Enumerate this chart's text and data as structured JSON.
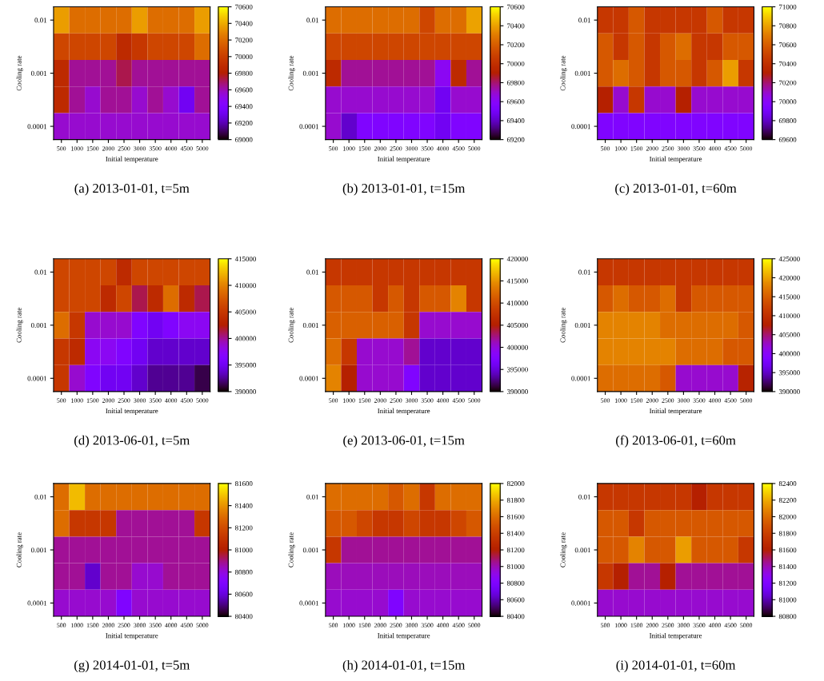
{
  "chart_data": [
    {
      "type": "heatmap",
      "title": "(a) 2013-01-01, t=5m",
      "xlabel": "Initial temperature",
      "ylabel": "Cooling rate",
      "categories": [
        "500",
        "1000",
        "1500",
        "2000",
        "2500",
        "3000",
        "3500",
        "4000",
        "4500",
        "5000"
      ],
      "y_categories": [
        "0.01",
        null,
        "0.001",
        null,
        "0.0001"
      ],
      "clim": [
        69000,
        70600
      ],
      "cticks": [
        69000,
        69200,
        69400,
        69600,
        69800,
        70000,
        70200,
        70400,
        70600
      ],
      "cells": [
        [
          70360,
          70200,
          70200,
          70200,
          70200,
          70360,
          70200,
          70200,
          70200,
          70360
        ],
        [
          70040,
          70040,
          70040,
          70040,
          69880,
          69960,
          70040,
          70040,
          70040,
          70200
        ],
        [
          69880,
          69640,
          69640,
          69640,
          69720,
          69640,
          69640,
          69640,
          69640,
          69640
        ],
        [
          69880,
          69640,
          69560,
          69640,
          69640,
          69560,
          69640,
          69560,
          69320,
          69640
        ],
        [
          69560,
          69560,
          69560,
          69560,
          69560,
          69560,
          69560,
          69560,
          69560,
          69560
        ]
      ]
    },
    {
      "type": "heatmap",
      "title": "(b) 2013-01-01, t=15m",
      "xlabel": "Initial temperature",
      "ylabel": "Cooling rate",
      "categories": [
        "500",
        "1000",
        "1500",
        "2000",
        "2500",
        "3000",
        "3500",
        "4000",
        "4500",
        "5000"
      ],
      "y_categories": [
        "0.01",
        null,
        "0.001",
        null,
        "0.0001"
      ],
      "clim": [
        69200,
        70600
      ],
      "cticks": [
        69200,
        69400,
        69600,
        69800,
        70000,
        70200,
        70400,
        70600
      ],
      "cells": [
        [
          70250,
          70250,
          70250,
          70250,
          70250,
          70250,
          70110,
          70250,
          70250,
          70400
        ],
        [
          70110,
          70110,
          70110,
          70110,
          70110,
          70110,
          70110,
          70110,
          70110,
          70110
        ],
        [
          69970,
          69760,
          69760,
          69760,
          69760,
          69760,
          69760,
          69620,
          69970,
          69760
        ],
        [
          69690,
          69690,
          69690,
          69690,
          69690,
          69690,
          69690,
          69480,
          69690,
          69690
        ],
        [
          69690,
          69410,
          69550,
          69550,
          69550,
          69550,
          69550,
          69480,
          69550,
          69550
        ]
      ]
    },
    {
      "type": "heatmap",
      "title": "(c) 2013-01-01, t=60m",
      "xlabel": "Initial temperature",
      "ylabel": "Cooling rate",
      "categories": [
        "500",
        "1000",
        "1500",
        "2000",
        "2500",
        "3000",
        "3500",
        "4000",
        "4500",
        "5000"
      ],
      "y_categories": [
        "0.01",
        null,
        "0.001",
        null,
        "0.0001"
      ],
      "clim": [
        69600,
        71000
      ],
      "cticks": [
        69600,
        69800,
        70000,
        70200,
        70400,
        70600,
        70800,
        71000
      ],
      "cells": [
        [
          70440,
          70440,
          70580,
          70440,
          70440,
          70440,
          70440,
          70580,
          70440,
          70440
        ],
        [
          70580,
          70440,
          70580,
          70440,
          70580,
          70650,
          70440,
          70440,
          70580,
          70580
        ],
        [
          70580,
          70650,
          70580,
          70440,
          70580,
          70580,
          70440,
          70580,
          70790,
          70440
        ],
        [
          70300,
          70090,
          70440,
          70090,
          70090,
          70300,
          70090,
          70090,
          70090,
          70090
        ],
        [
          69950,
          69950,
          69950,
          69950,
          69950,
          69950,
          69950,
          69950,
          69950,
          69950
        ]
      ]
    },
    {
      "type": "heatmap",
      "title": "(d) 2013-06-01, t=5m",
      "xlabel": "Initial temperature",
      "ylabel": "Cooling rate",
      "categories": [
        "500",
        "1000",
        "1500",
        "2000",
        "2500",
        "3000",
        "3500",
        "4000",
        "4500",
        "5000"
      ],
      "y_categories": [
        "0.01",
        null,
        "0.001",
        null,
        "0.0001"
      ],
      "clim": [
        390000,
        415000
      ],
      "cticks": [
        390000,
        395000,
        400000,
        405000,
        410000,
        415000
      ],
      "cells": [
        [
          406250,
          406250,
          406250,
          406250,
          403750,
          406250,
          406250,
          406250,
          406250,
          406250
        ],
        [
          406250,
          406250,
          406250,
          403750,
          406250,
          401250,
          403750,
          408750,
          403750,
          401250
        ],
        [
          408750,
          405000,
          398750,
          398750,
          398750,
          396250,
          395000,
          396250,
          397500,
          397500
        ],
        [
          405000,
          403750,
          397500,
          397500,
          396250,
          395000,
          393750,
          393750,
          393750,
          393750
        ],
        [
          405000,
          398750,
          396250,
          395000,
          395000,
          393750,
          392500,
          392500,
          392500,
          391250
        ]
      ]
    },
    {
      "type": "heatmap",
      "title": "(e) 2013-06-01, t=15m",
      "xlabel": "Initial temperature",
      "ylabel": "Cooling rate",
      "categories": [
        "500",
        "1000",
        "1500",
        "2000",
        "2500",
        "3000",
        "3500",
        "4000",
        "4500",
        "5000"
      ],
      "y_categories": [
        "0.01",
        null,
        "0.001",
        null,
        "0.0001"
      ],
      "clim": [
        390000,
        420000
      ],
      "cticks": [
        390000,
        395000,
        400000,
        405000,
        410000,
        415000,
        420000
      ],
      "cells": [
        [
          408000,
          408000,
          408000,
          408000,
          408000,
          408000,
          408000,
          408000,
          408000,
          408000
        ],
        [
          411000,
          411000,
          411000,
          408000,
          411000,
          408000,
          411000,
          411000,
          414000,
          408000
        ],
        [
          411600,
          411600,
          411600,
          411600,
          411600,
          408000,
          400500,
          400500,
          400500,
          400500
        ],
        [
          412500,
          408000,
          400500,
          400500,
          400500,
          402000,
          394500,
          394500,
          394500,
          394500
        ],
        [
          414000,
          405000,
          400500,
          400500,
          400500,
          397500,
          394500,
          394500,
          394500,
          394500
        ]
      ]
    },
    {
      "type": "heatmap",
      "title": "(f) 2013-06-01, t=60m",
      "xlabel": "Initial temperature",
      "ylabel": "Cooling rate",
      "categories": [
        "500",
        "1000",
        "1500",
        "2000",
        "2500",
        "3000",
        "3500",
        "4000",
        "4500",
        "5000"
      ],
      "y_categories": [
        "0.01",
        null,
        "0.001",
        null,
        "0.0001"
      ],
      "clim": [
        390000,
        425000
      ],
      "cticks": [
        390000,
        395000,
        400000,
        405000,
        410000,
        415000,
        420000,
        425000
      ],
      "cells": [
        [
          411000,
          411000,
          411000,
          411000,
          411000,
          411000,
          411000,
          411000,
          411000,
          411000
        ],
        [
          414500,
          416250,
          414500,
          414500,
          416250,
          411000,
          414500,
          414500,
          414500,
          414500
        ],
        [
          418000,
          418000,
          418000,
          418000,
          416250,
          416250,
          416250,
          416250,
          416250,
          414500
        ],
        [
          418000,
          418000,
          418000,
          418000,
          418000,
          416250,
          416250,
          416250,
          414500,
          414500
        ],
        [
          416250,
          416250,
          416250,
          416250,
          414500,
          402250,
          402250,
          402250,
          402250,
          408000
        ]
      ]
    },
    {
      "type": "heatmap",
      "title": "(g) 2014-01-01, t=5m",
      "xlabel": "Initial temperature",
      "ylabel": "Cooling rate",
      "categories": [
        "500",
        "1000",
        "1500",
        "2000",
        "2500",
        "3000",
        "3500",
        "4000",
        "4500",
        "5000"
      ],
      "y_categories": [
        "0.01",
        null,
        "0.001",
        null,
        "0.0001"
      ],
      "clim": [
        80400,
        81600
      ],
      "cticks": [
        80400,
        80600,
        80800,
        81000,
        81200,
        81400,
        81600
      ],
      "cells": [
        [
          81300,
          81480,
          81300,
          81300,
          81300,
          81300,
          81300,
          81300,
          81300,
          81300
        ],
        [
          81300,
          81120,
          81120,
          81120,
          80880,
          80880,
          80880,
          80880,
          80880,
          81120
        ],
        [
          80880,
          80880,
          80880,
          80880,
          80880,
          80880,
          80880,
          80880,
          80880,
          80880
        ],
        [
          80880,
          80880,
          80580,
          80880,
          80880,
          80820,
          80820,
          80880,
          80880,
          80880
        ],
        [
          80820,
          80820,
          80820,
          80820,
          80700,
          80820,
          80820,
          80820,
          80820,
          80820
        ]
      ]
    },
    {
      "type": "heatmap",
      "title": "(h) 2014-01-01, t=15m",
      "xlabel": "Initial temperature",
      "ylabel": "Cooling rate",
      "categories": [
        "500",
        "1000",
        "1500",
        "2000",
        "2500",
        "3000",
        "3500",
        "4000",
        "4500",
        "5000"
      ],
      "y_categories": [
        "0.01",
        null,
        "0.001",
        null,
        "0.0001"
      ],
      "clim": [
        80400,
        82000
      ],
      "cticks": [
        80400,
        80600,
        80800,
        81000,
        81200,
        81400,
        81600,
        81800,
        82000
      ],
      "cells": [
        [
          81600,
          81600,
          81600,
          81600,
          81520,
          81600,
          81360,
          81600,
          81600,
          81600
        ],
        [
          81520,
          81520,
          81440,
          81360,
          81360,
          81440,
          81360,
          81360,
          81440,
          81520
        ],
        [
          81360,
          81040,
          81040,
          81040,
          81040,
          81040,
          81040,
          81040,
          81040,
          81040
        ],
        [
          80990,
          80990,
          80990,
          80990,
          80990,
          80990,
          80990,
          80990,
          80990,
          80990
        ],
        [
          80960,
          80960,
          80960,
          80960,
          80800,
          80960,
          80960,
          80960,
          80960,
          80960
        ]
      ]
    },
    {
      "type": "heatmap",
      "title": "(i) 2014-01-01, t=60m",
      "xlabel": "Initial temperature",
      "ylabel": "Cooling rate",
      "categories": [
        "500",
        "1000",
        "1500",
        "2000",
        "2500",
        "3000",
        "3500",
        "4000",
        "4500",
        "5000"
      ],
      "y_categories": [
        "0.01",
        null,
        "0.001",
        null,
        "0.0001"
      ],
      "clim": [
        80800,
        82400
      ],
      "cticks": [
        80800,
        81000,
        81200,
        81400,
        81600,
        81800,
        82000,
        82200,
        82400
      ],
      "cells": [
        [
          81760,
          81760,
          81760,
          81760,
          81760,
          81760,
          81600,
          81760,
          81760,
          81760
        ],
        [
          81920,
          81920,
          81760,
          81920,
          81920,
          81920,
          81920,
          81920,
          81920,
          81920
        ],
        [
          81920,
          81920,
          82080,
          81920,
          81920,
          82160,
          81920,
          81920,
          81920,
          81760
        ],
        [
          81760,
          81600,
          81440,
          81440,
          81600,
          81440,
          81440,
          81440,
          81440,
          81440
        ],
        [
          81360,
          81360,
          81360,
          81360,
          81360,
          81360,
          81360,
          81360,
          81360,
          81360
        ]
      ]
    }
  ]
}
